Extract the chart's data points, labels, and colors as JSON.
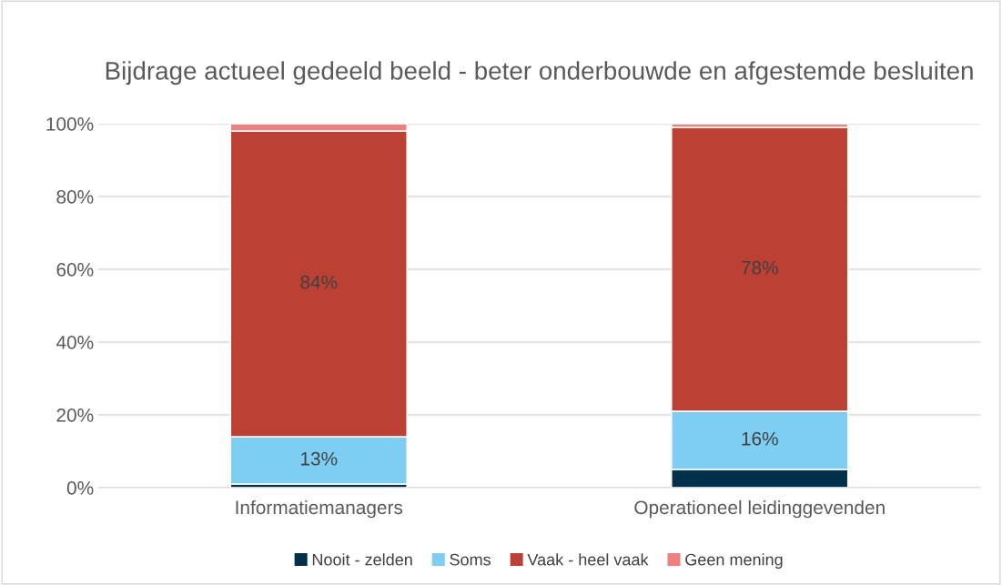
{
  "chart_data": {
    "type": "bar",
    "title": "Bijdrage actueel gedeeld beeld - beter onderbouwde en afgestemde besluiten",
    "categories": [
      "Informatiemanagers",
      "Operationeel leidinggevenden"
    ],
    "stacked": true,
    "series": [
      {
        "name": "Nooit - zelden",
        "color": "#00304a",
        "values": [
          1,
          5
        ]
      },
      {
        "name": "Soms",
        "color": "#7ecef4",
        "values": [
          13,
          16
        ],
        "value_labels": [
          "13%",
          "16%"
        ]
      },
      {
        "name": "Vaak - heel vaak",
        "color": "#bc4134",
        "values": [
          84,
          78
        ],
        "value_labels": [
          "84%",
          "78%"
        ]
      },
      {
        "name": "Geen mening",
        "color": "#ee8080",
        "values": [
          2,
          1
        ]
      }
    ],
    "ylim": [
      0,
      100
    ],
    "yticks": [
      {
        "value": 0,
        "label": "0%"
      },
      {
        "value": 20,
        "label": "20%"
      },
      {
        "value": 40,
        "label": "40%"
      },
      {
        "value": 60,
        "label": "60%"
      },
      {
        "value": 80,
        "label": "80%"
      },
      {
        "value": 100,
        "label": "100%"
      }
    ],
    "grid": "y",
    "legend": "bottom"
  }
}
